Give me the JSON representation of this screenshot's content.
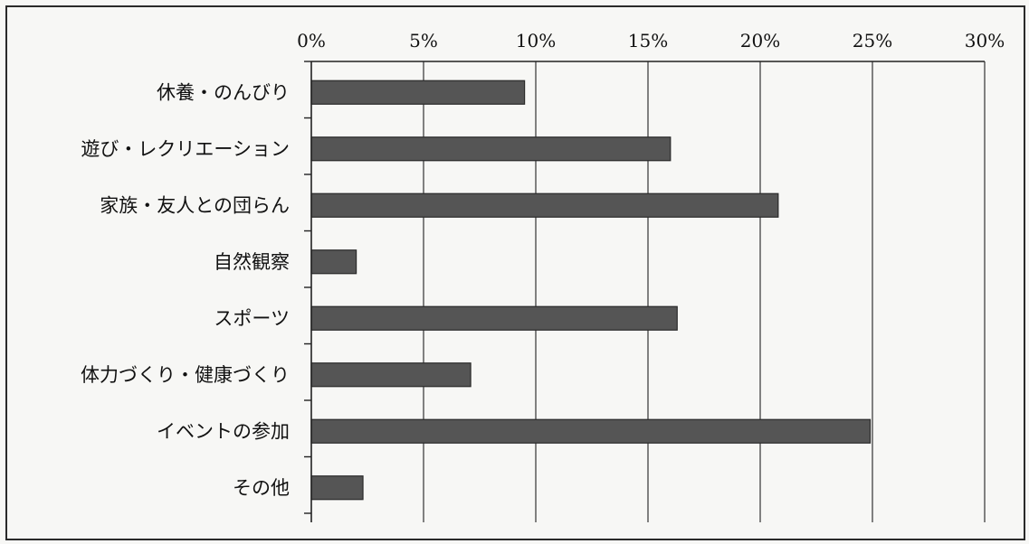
{
  "chart_data": {
    "type": "bar",
    "orientation": "horizontal",
    "categories": [
      "休養・のんびり",
      "遊び・レクリエーション",
      "家族・友人との団らん",
      "自然観察",
      "スポーツ",
      "体力づくり・健康づくり",
      "イベントの参加",
      "その他"
    ],
    "values": [
      9.5,
      16.0,
      20.8,
      2.0,
      16.3,
      7.1,
      24.9,
      2.3
    ],
    "value_unit": "%",
    "xlim": [
      0,
      30
    ],
    "xticks": [
      0,
      5,
      10,
      15,
      20,
      25,
      30
    ],
    "xtick_labels": [
      "0%",
      "5%",
      "10%",
      "15%",
      "20%",
      "25%",
      "30%"
    ],
    "axis_position": "top",
    "grid": "vertical",
    "bar_color": "#555555",
    "title": "",
    "xlabel": "",
    "ylabel": ""
  }
}
